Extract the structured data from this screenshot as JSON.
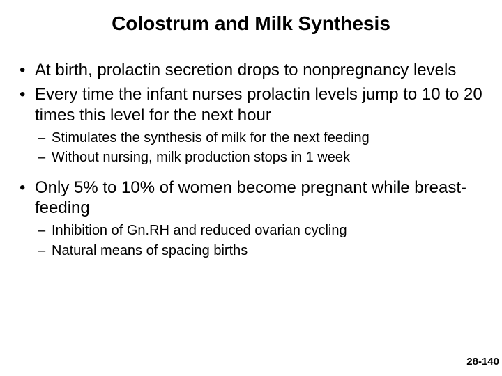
{
  "slide": {
    "title": "Colostrum and Milk Synthesis",
    "title_fontsize": 28,
    "body_fontsize_lvl1": 24,
    "body_fontsize_lvl2": 20,
    "footer_fontsize": 15,
    "text_color": "#000000",
    "background_color": "#ffffff",
    "bullets": [
      {
        "level": 1,
        "text": "At birth, prolactin secretion drops to nonpregnancy levels"
      },
      {
        "level": 1,
        "text": "Every time the infant nurses prolactin levels jump to 10 to 20 times this level for the next hour"
      },
      {
        "level": 2,
        "text": "Stimulates the synthesis of milk for the next feeding"
      },
      {
        "level": 2,
        "text": "Without nursing, milk production stops in 1 week"
      },
      {
        "level": 1,
        "text": "Only 5% to 10% of women become pregnant while breast-feeding"
      },
      {
        "level": 2,
        "text": "Inhibition of Gn.RH and reduced ovarian cycling"
      },
      {
        "level": 2,
        "text": "Natural means of spacing births"
      }
    ],
    "footer": "28-140"
  }
}
